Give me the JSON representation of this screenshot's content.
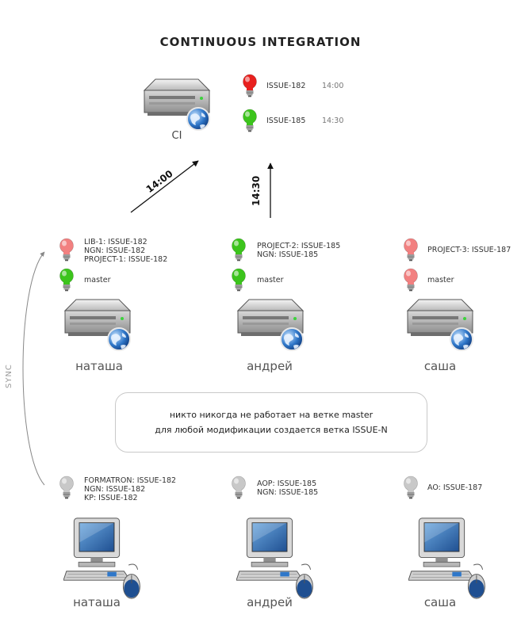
{
  "title": "CONTINUOUS INTEGRATION",
  "ci": {
    "label": "CI",
    "builds": [
      {
        "issue": "ISSUE-182",
        "time": "14:00",
        "status": "red"
      },
      {
        "issue": "ISSUE-185",
        "time": "14:30",
        "status": "green"
      }
    ]
  },
  "arrows": {
    "left_time": "14:00",
    "right_time": "14:30",
    "sync": "SYNC"
  },
  "servers": [
    {
      "name": "наташа",
      "branch_status": "light-red",
      "branch_lines": [
        "LIB-1:  ISSUE-182",
        "NGN:  ISSUE-182",
        "PROJECT-1:  ISSUE-182"
      ],
      "master_status": "green",
      "master_label": "master"
    },
    {
      "name": "андрей",
      "branch_status": "green",
      "branch_lines": [
        "PROJECT-2:  ISSUE-185",
        "NGN:  ISSUE-185"
      ],
      "master_status": "green",
      "master_label": "master"
    },
    {
      "name": "саша",
      "branch_status": "light-red",
      "branch_lines": [
        "PROJECT-3:  ISSUE-187"
      ],
      "master_status": "light-red",
      "master_label": "master"
    }
  ],
  "note": {
    "line1": "никто никогда не работает на ветке master",
    "line2": "для любой модификации создается ветка ISSUE-N"
  },
  "workstations": [
    {
      "name": "наташа",
      "status": "gray",
      "lines": [
        "FORMATRON:  ISSUE-182",
        "NGN:  ISSUE-182",
        "KP:  ISSUE-182"
      ]
    },
    {
      "name": "андрей",
      "status": "gray",
      "lines": [
        "AOP:  ISSUE-185",
        "NGN:  ISSUE-185"
      ]
    },
    {
      "name": "саша",
      "status": "gray",
      "lines": [
        "AO:  ISSUE-187"
      ]
    }
  ],
  "colors": {
    "red": "#e8201e",
    "green": "#3cc41c",
    "light-red": "#f28080",
    "light-green": "#88dd66",
    "gray": "#c8c8c8"
  }
}
